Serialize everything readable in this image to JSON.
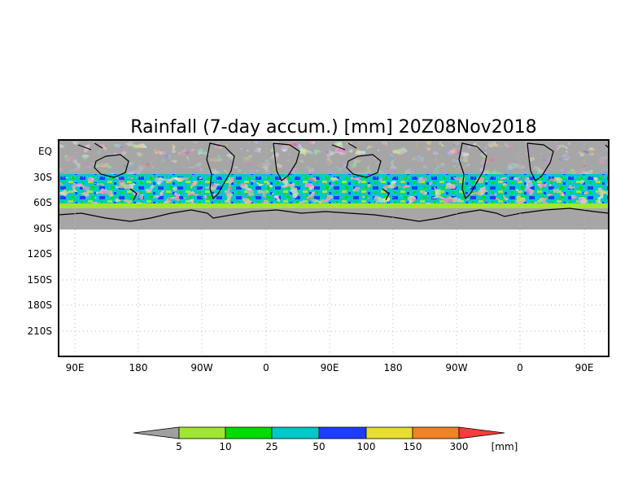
{
  "title": "Rainfall (7-day accum.) [mm] 20Z08Nov2018",
  "map": {
    "lat_labels": [
      "EQ",
      "30S",
      "60S",
      "90S",
      "120S",
      "150S",
      "180S",
      "210S"
    ],
    "lon_labels": [
      "90E",
      "180",
      "90W",
      "0",
      "90E",
      "180",
      "90W",
      "0",
      "90E"
    ],
    "grid": "dotted",
    "no_data_color": "#a6a6a6",
    "land_outline_color": "#000000"
  },
  "colorbar": {
    "unit_label": "[mm]",
    "tick_labels": [
      "5",
      "10",
      "25",
      "50",
      "100",
      "150",
      "300"
    ],
    "colors": [
      "#a0a0a0",
      "#a0e632",
      "#00dc00",
      "#00c8c8",
      "#1e3cff",
      "#e6dc32",
      "#f08228",
      "#fa3c3c"
    ]
  }
}
